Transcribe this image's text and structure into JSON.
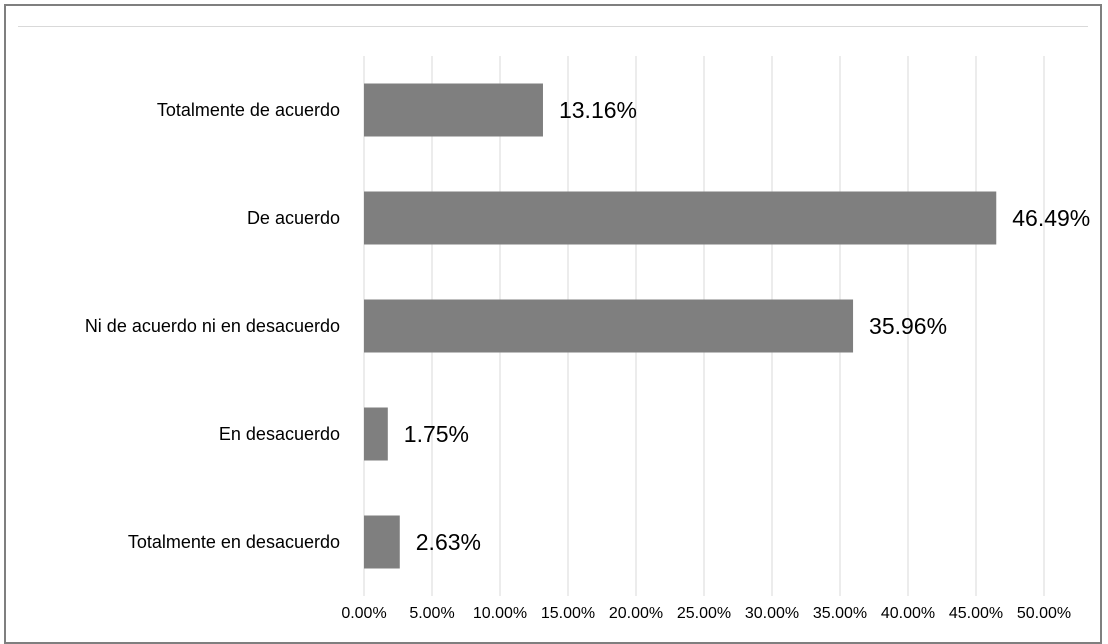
{
  "chart_data": {
    "type": "bar",
    "orientation": "horizontal",
    "categories": [
      "Totalmente de acuerdo",
      "De acuerdo",
      "Ni de acuerdo ni en desacuerdo",
      "En desacuerdo",
      "Totalmente en desacuerdo"
    ],
    "values": [
      13.16,
      46.49,
      35.96,
      1.75,
      2.63
    ],
    "value_labels": [
      "13.16%",
      "46.49%",
      "35.96%",
      "1.75%",
      "2.63%"
    ],
    "x_ticks": [
      "0.00%",
      "5.00%",
      "10.00%",
      "15.00%",
      "20.00%",
      "25.00%",
      "30.00%",
      "35.00%",
      "40.00%",
      "45.00%",
      "50.00%"
    ],
    "xlim": [
      0,
      50
    ],
    "grid": "vertical",
    "legend": "none",
    "bar_color": "#7f7f7f",
    "grid_color": "#d9d9d9",
    "title": "",
    "xlabel": "",
    "ylabel": ""
  }
}
